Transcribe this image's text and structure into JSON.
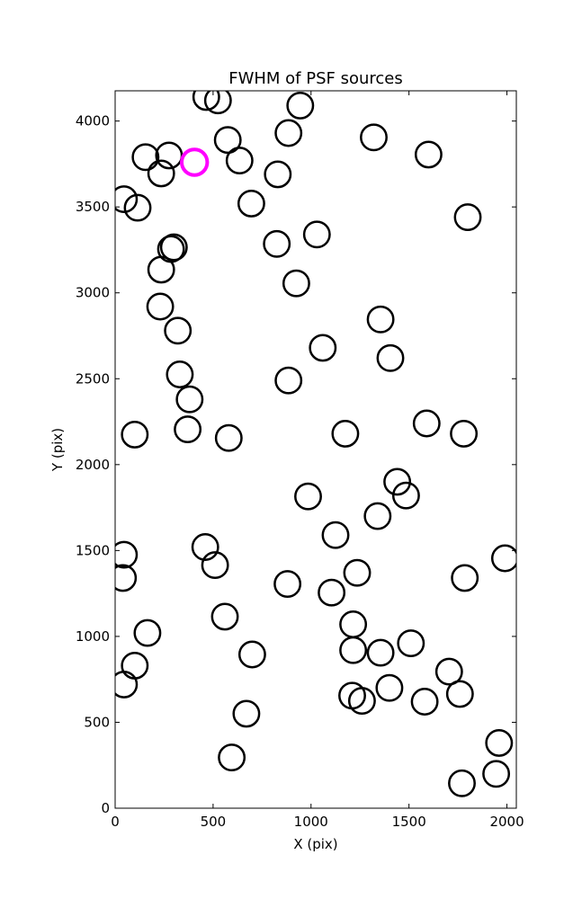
{
  "chart_data": {
    "type": "scatter",
    "title": "FWHM of PSF sources",
    "xlabel": "X (pix)",
    "ylabel": "Y (pix)",
    "xlim": [
      0,
      2048
    ],
    "ylim": [
      0,
      4176
    ],
    "xticks": [
      0,
      500,
      1000,
      1500,
      2000
    ],
    "yticks": [
      0,
      500,
      1000,
      1500,
      2000,
      2500,
      3000,
      3500,
      4000
    ],
    "grid": false,
    "marker": "open circle",
    "marker_radius": 65,
    "colors": {
      "default": "#000000",
      "highlight": "#ff00ff"
    },
    "series": [
      {
        "points": [
          [
            45,
            3545
          ],
          [
            115,
            3495
          ],
          [
            155,
            3790
          ],
          [
            235,
            3695
          ],
          [
            275,
            3800
          ],
          [
            300,
            3265
          ],
          [
            285,
            3255
          ],
          [
            235,
            3135
          ],
          [
            230,
            2920
          ],
          [
            320,
            2780
          ],
          [
            330,
            2525
          ],
          [
            380,
            2380
          ],
          [
            370,
            2205
          ],
          [
            580,
            2155
          ],
          [
            100,
            2175
          ],
          [
            465,
            4140
          ],
          [
            525,
            4120
          ],
          [
            575,
            3890
          ],
          [
            635,
            3770
          ],
          [
            695,
            3520
          ],
          [
            830,
            3690
          ],
          [
            885,
            3930
          ],
          [
            945,
            4090
          ],
          [
            825,
            3285
          ],
          [
            1030,
            3340
          ],
          [
            925,
            3055
          ],
          [
            1060,
            2680
          ],
          [
            885,
            2490
          ],
          [
            1320,
            3905
          ],
          [
            1600,
            3805
          ],
          [
            1800,
            3440
          ],
          [
            1355,
            2845
          ],
          [
            1405,
            2620
          ],
          [
            1590,
            2240
          ],
          [
            1780,
            2180
          ],
          [
            1175,
            2180
          ],
          [
            985,
            1815
          ],
          [
            1440,
            1900
          ],
          [
            1485,
            1820
          ],
          [
            1340,
            1700
          ],
          [
            1125,
            1590
          ],
          [
            1235,
            1370
          ],
          [
            1105,
            1255
          ],
          [
            880,
            1305
          ],
          [
            460,
            1520
          ],
          [
            510,
            1415
          ],
          [
            560,
            1115
          ],
          [
            700,
            895
          ],
          [
            670,
            550
          ],
          [
            595,
            295
          ],
          [
            45,
            1475
          ],
          [
            40,
            1340
          ],
          [
            165,
            1020
          ],
          [
            100,
            830
          ],
          [
            45,
            720
          ],
          [
            1215,
            1070
          ],
          [
            1215,
            920
          ],
          [
            1355,
            905
          ],
          [
            1510,
            960
          ],
          [
            1400,
            700
          ],
          [
            1210,
            655
          ],
          [
            1260,
            625
          ],
          [
            1580,
            620
          ],
          [
            1705,
            795
          ],
          [
            1760,
            665
          ],
          [
            1785,
            1340
          ],
          [
            1990,
            1455
          ],
          [
            1960,
            380
          ],
          [
            1945,
            200
          ],
          [
            1770,
            145
          ]
        ]
      },
      {
        "highlight": true,
        "points": [
          [
            405,
            3760
          ]
        ]
      }
    ]
  }
}
